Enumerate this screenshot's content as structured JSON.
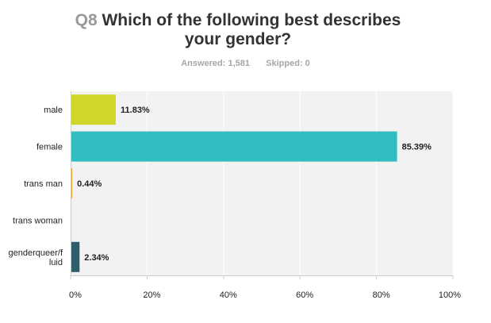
{
  "question": {
    "number": "Q8",
    "text": "Which of the following best describes your gender?"
  },
  "stats": {
    "answered_label": "Answered:",
    "answered_value": "1,581",
    "skipped_label": "Skipped:",
    "skipped_value": "0"
  },
  "chart_data": {
    "type": "bar",
    "orientation": "horizontal",
    "categories": [
      "male",
      "female",
      "trans man",
      "trans woman",
      "genderqueer/fluid"
    ],
    "category_display": [
      "male",
      "female",
      "trans man",
      "trans woman",
      "genderqueer/f\nluid"
    ],
    "values": [
      11.83,
      85.39,
      0.44,
      0,
      2.34
    ],
    "value_labels": [
      "11.83%",
      "85.39%",
      "0.44%",
      "",
      "2.34%"
    ],
    "bar_colors": [
      "#d0d62b",
      "#32bec1",
      "#f2a73b",
      "#c9c9c9",
      "#2e5e6b"
    ],
    "xlim": [
      0,
      100
    ],
    "xticks": [
      0,
      20,
      40,
      60,
      80,
      100
    ],
    "xtick_labels": [
      "0%",
      "20%",
      "40%",
      "60%",
      "80%",
      "100%"
    ],
    "grid": true,
    "colors": {
      "plot_background": "#f2f2f2",
      "gridline": "#ffffff",
      "axis": "#cccccc"
    }
  }
}
